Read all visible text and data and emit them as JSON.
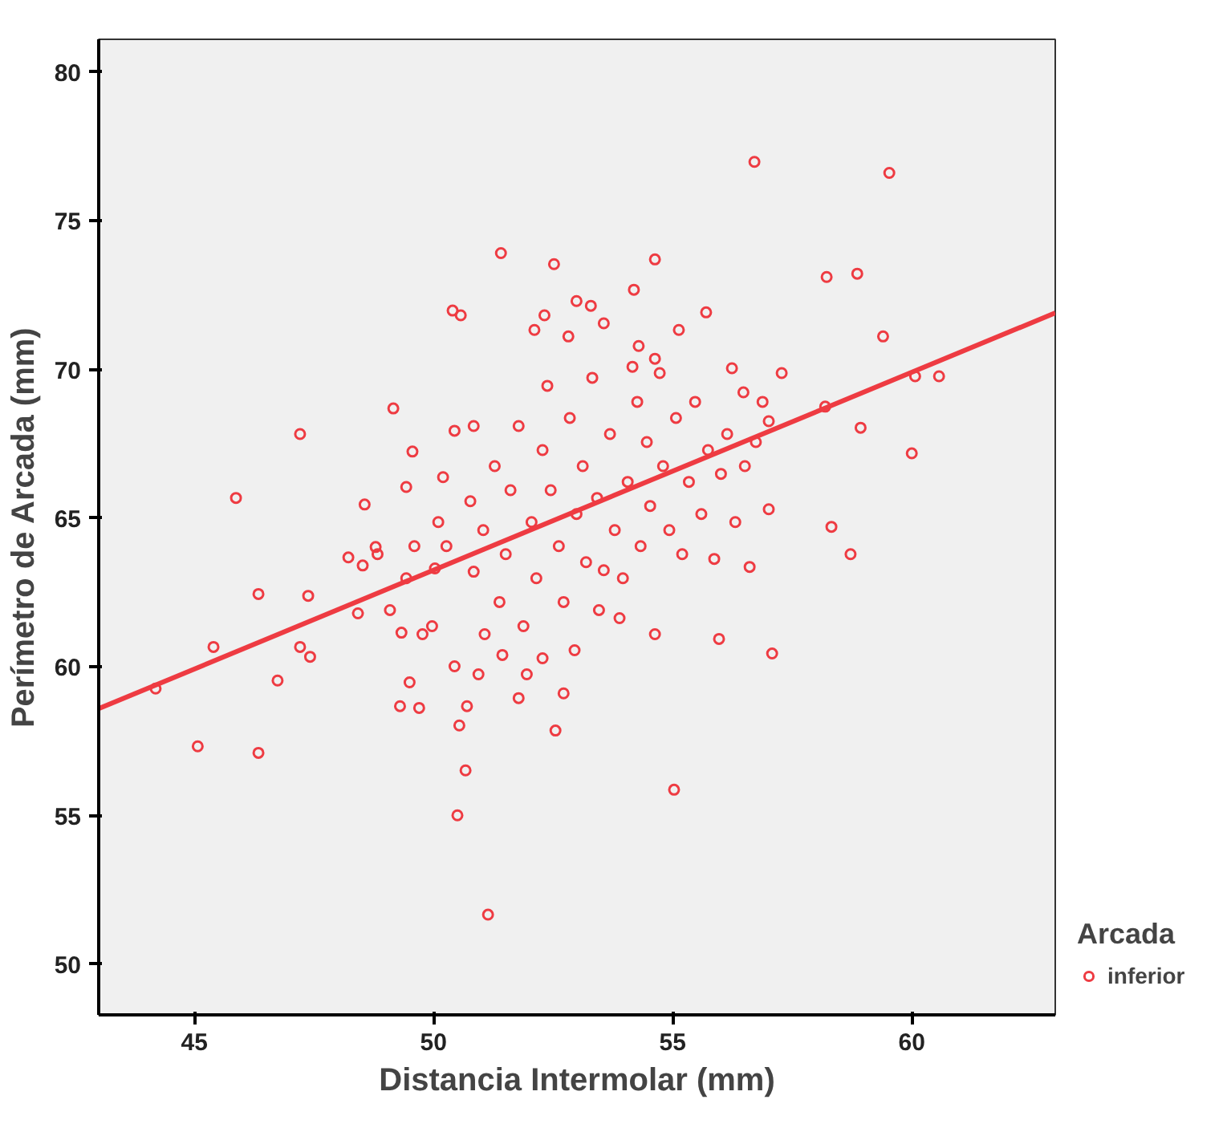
{
  "chart_data": {
    "type": "scatter",
    "xlabel": "Distancia Intermolar (mm)",
    "ylabel": "Perímetro de Arcada (mm)",
    "legend_title": "Arcada",
    "xlim": [
      43,
      63
    ],
    "ylim": [
      48.3,
      81.1
    ],
    "xticks": [
      45,
      50,
      55,
      60
    ],
    "yticks": [
      50,
      55,
      60,
      65,
      70,
      75,
      80
    ],
    "grid": false,
    "legend": "right",
    "marker": "circle",
    "series": [
      {
        "name": "inferior",
        "color": "#ee3b42",
        "x": [
          44.19,
          45.07,
          45.4,
          45.87,
          46.34,
          46.34,
          46.74,
          47.21,
          47.21,
          47.42,
          47.38,
          48.22,
          48.42,
          48.56,
          48.52,
          48.79,
          49.16,
          49.3,
          49.33,
          49.56,
          49.7,
          49.97,
          50.03,
          50.2,
          50.4,
          50.57,
          50.54,
          50.5,
          50.67,
          51.07,
          51.14,
          51.41,
          51.78,
          52.32,
          52.52,
          52.55,
          52.82,
          53.56,
          54.19,
          54.63,
          55.03,
          55.7,
          55.97,
          56.61,
          56.71,
          57.01,
          57.08,
          57.28,
          58.19,
          58.22,
          58.32,
          58.72,
          58.86,
          58.93,
          59.4,
          59.53,
          60.0,
          60.07,
          60.57,
          57.01,
          56.24,
          56.48,
          50.1,
          50.27,
          50.77,
          50.84,
          51.04,
          51.28,
          51.38,
          51.51,
          51.61,
          51.78,
          51.88,
          52.05,
          52.15,
          52.28,
          52.38,
          52.45,
          52.62,
          52.72,
          52.85,
          52.99,
          53.12,
          53.19,
          53.32,
          53.42,
          53.56,
          53.69,
          53.79,
          53.89,
          54.06,
          54.16,
          54.26,
          54.33,
          54.46,
          54.53,
          54.63,
          54.73,
          54.8,
          54.93,
          55.07,
          55.2,
          55.34,
          55.47,
          55.6,
          55.74,
          55.87,
          56.01,
          56.14,
          56.31,
          56.51,
          56.74,
          56.88,
          50.44,
          50.7,
          50.94,
          51.44,
          51.95,
          52.28,
          52.72,
          52.95,
          53.46,
          53.96,
          49.5,
          49.77,
          49.09,
          49.43,
          49.6,
          48.83,
          53.29,
          54.29,
          55.13,
          52.11,
          50.84,
          50.44,
          52.99,
          54.63,
          49.43
        ],
        "values": [
          59.27,
          57.33,
          60.67,
          65.68,
          57.11,
          62.45,
          59.54,
          67.83,
          60.67,
          60.34,
          62.39,
          63.68,
          61.8,
          65.46,
          63.41,
          64.03,
          68.69,
          58.68,
          61.15,
          67.24,
          58.62,
          61.37,
          63.31,
          66.38,
          71.98,
          71.82,
          58.03,
          55.01,
          56.52,
          61.1,
          51.67,
          73.91,
          58.95,
          71.82,
          73.54,
          57.86,
          71.11,
          71.55,
          72.68,
          73.7,
          55.87,
          71.92,
          60.94,
          63.36,
          76.98,
          65.3,
          60.45,
          69.88,
          68.75,
          73.11,
          64.71,
          63.79,
          73.22,
          68.04,
          71.11,
          76.61,
          67.18,
          69.77,
          69.77,
          68.26,
          70.04,
          69.23,
          64.87,
          64.06,
          65.57,
          63.2,
          64.6,
          66.75,
          62.18,
          63.79,
          65.94,
          68.1,
          61.37,
          64.87,
          62.98,
          67.29,
          69.45,
          65.94,
          64.06,
          62.18,
          68.37,
          65.14,
          66.75,
          63.52,
          69.72,
          65.68,
          63.25,
          67.83,
          64.6,
          61.64,
          66.22,
          70.09,
          68.91,
          64.06,
          67.56,
          65.41,
          61.1,
          69.88,
          66.75,
          64.6,
          68.37,
          63.79,
          66.22,
          68.91,
          65.14,
          67.29,
          63.63,
          66.49,
          67.83,
          64.87,
          66.75,
          67.56,
          68.91,
          60.02,
          58.68,
          59.75,
          60.4,
          59.75,
          60.29,
          59.11,
          60.56,
          61.91,
          62.98,
          59.48,
          61.1,
          61.91,
          62.98,
          64.06,
          63.79,
          72.14,
          70.79,
          71.33,
          71.33,
          68.1,
          67.94,
          72.3,
          70.36,
          66.05
        ]
      },
      {
        "color": "#ee3b42",
        "type": "line",
        "marker": "none",
        "x": [
          43,
          63
        ],
        "values": [
          58.6,
          71.9
        ]
      }
    ]
  }
}
